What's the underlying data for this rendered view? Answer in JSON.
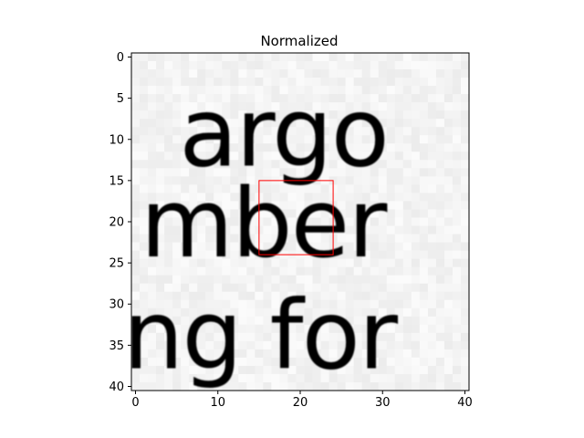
{
  "chart_data": {
    "type": "heatmap",
    "title": "Normalized",
    "xlabel": "",
    "ylabel": "",
    "xlim": [
      -0.5,
      40.5
    ],
    "ylim": [
      40.5,
      -0.5
    ],
    "x_ticks": [
      0,
      10,
      20,
      30,
      40
    ],
    "y_ticks": [
      0,
      5,
      10,
      15,
      20,
      25,
      30,
      35,
      40
    ],
    "colormap": "gray",
    "image_size": [
      41,
      41
    ],
    "image_content": "grayscale crop of printed serif text showing fragments 'argo' (top), 'mber' (middle) and 'ng for' (bottom)",
    "text_fragments": [
      {
        "text": "argo",
        "row_range": [
          5,
          13
        ]
      },
      {
        "text": "mber",
        "row_range": [
          16,
          24
        ]
      },
      {
        "text": "ng for",
        "row_range": [
          30,
          40
        ]
      }
    ],
    "highlight_box": {
      "x0": 15,
      "y0": 15,
      "x1": 24,
      "y1": 24,
      "color": "#ff0000"
    },
    "grid": false,
    "background_color": "#f3f3f3",
    "ink_color": "#141414"
  }
}
